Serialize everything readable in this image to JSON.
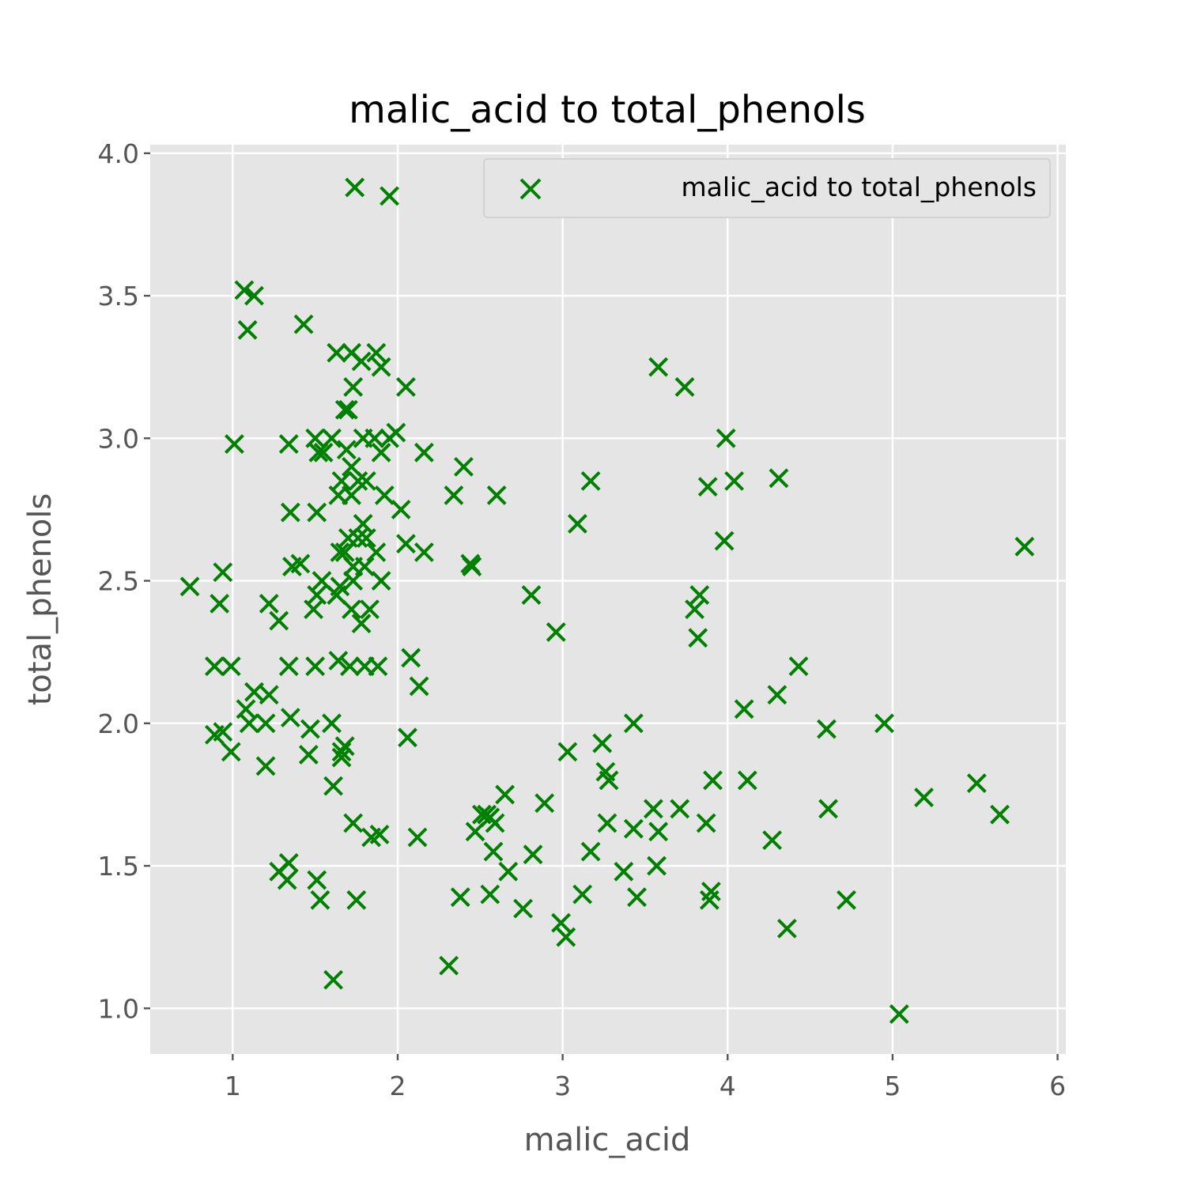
{
  "chart_data": {
    "type": "scatter",
    "title": "malic_acid to total_phenols",
    "xlabel": "malic_acid",
    "ylabel": "total_phenols",
    "xlim": [
      0.5,
      6.05
    ],
    "ylim": [
      0.84,
      4.03
    ],
    "xticks": [
      1,
      2,
      3,
      4,
      5,
      6
    ],
    "yticks": [
      1.0,
      1.5,
      2.0,
      2.5,
      3.0,
      3.5,
      4.0
    ],
    "xtick_labels": [
      "1",
      "2",
      "3",
      "4",
      "5",
      "6"
    ],
    "ytick_labels": [
      "1.0",
      "1.5",
      "2.0",
      "2.5",
      "3.0",
      "3.5",
      "4.0"
    ],
    "grid": true,
    "legend_position": "top-right",
    "marker": "x",
    "style": "ggplot",
    "colors": {
      "marker": "#008000",
      "axes_bg": "#e5e5e5",
      "grid": "#ffffff",
      "text": "#555555",
      "title": "#000000"
    },
    "series": [
      {
        "name": "malic_acid to total_phenols",
        "points": [
          [
            1.74,
            3.88
          ],
          [
            1.95,
            3.85
          ],
          [
            1.07,
            3.52
          ],
          [
            1.13,
            3.5
          ],
          [
            1.09,
            3.38
          ],
          [
            1.43,
            3.4
          ],
          [
            1.63,
            3.3
          ],
          [
            1.72,
            3.3
          ],
          [
            1.87,
            3.3
          ],
          [
            1.78,
            3.27
          ],
          [
            1.9,
            3.25
          ],
          [
            2.05,
            3.18
          ],
          [
            1.73,
            3.18
          ],
          [
            1.7,
            3.1
          ],
          [
            1.68,
            3.1
          ],
          [
            1.01,
            2.98
          ],
          [
            1.34,
            2.98
          ],
          [
            1.5,
            3.0
          ],
          [
            1.6,
            3.0
          ],
          [
            1.69,
            2.96
          ],
          [
            1.79,
            3.0
          ],
          [
            1.86,
            3.0
          ],
          [
            1.95,
            3.0
          ],
          [
            1.99,
            3.02
          ],
          [
            1.52,
            2.95
          ],
          [
            1.55,
            2.95
          ],
          [
            1.9,
            2.95
          ],
          [
            2.16,
            2.95
          ],
          [
            1.72,
            2.9
          ],
          [
            2.4,
            2.9
          ],
          [
            1.66,
            2.85
          ],
          [
            1.76,
            2.85
          ],
          [
            1.81,
            2.85
          ],
          [
            1.64,
            2.8
          ],
          [
            1.72,
            2.8
          ],
          [
            1.92,
            2.8
          ],
          [
            1.35,
            2.74
          ],
          [
            1.51,
            2.74
          ],
          [
            2.02,
            2.75
          ],
          [
            1.79,
            2.7
          ],
          [
            1.7,
            2.65
          ],
          [
            1.76,
            2.65
          ],
          [
            1.81,
            2.65
          ],
          [
            1.65,
            2.6
          ],
          [
            1.68,
            2.6
          ],
          [
            1.87,
            2.6
          ],
          [
            2.05,
            2.63
          ],
          [
            2.16,
            2.6
          ],
          [
            1.36,
            2.55
          ],
          [
            1.41,
            2.56
          ],
          [
            1.73,
            2.55
          ],
          [
            1.8,
            2.55
          ],
          [
            1.9,
            2.5
          ],
          [
            1.54,
            2.5
          ],
          [
            1.65,
            2.48
          ],
          [
            1.73,
            2.5
          ],
          [
            1.51,
            2.45
          ],
          [
            1.63,
            2.45
          ],
          [
            1.49,
            2.4
          ],
          [
            1.72,
            2.4
          ],
          [
            1.83,
            2.4
          ],
          [
            1.78,
            2.35
          ],
          [
            0.74,
            2.48
          ],
          [
            0.94,
            2.53
          ],
          [
            0.92,
            2.42
          ],
          [
            1.22,
            2.42
          ],
          [
            1.28,
            2.36
          ],
          [
            0.89,
            2.2
          ],
          [
            0.99,
            2.2
          ],
          [
            1.34,
            2.2
          ],
          [
            1.5,
            2.2
          ],
          [
            1.64,
            2.22
          ],
          [
            1.71,
            2.2
          ],
          [
            1.8,
            2.2
          ],
          [
            1.88,
            2.2
          ],
          [
            1.13,
            2.11
          ],
          [
            1.22,
            2.1
          ],
          [
            1.08,
            2.05
          ],
          [
            1.1,
            2.0
          ],
          [
            1.2,
            2.0
          ],
          [
            1.35,
            2.02
          ],
          [
            1.47,
            1.98
          ],
          [
            1.6,
            2.0
          ],
          [
            0.89,
            1.96
          ],
          [
            0.94,
            1.97
          ],
          [
            0.99,
            1.9
          ],
          [
            1.66,
            1.9
          ],
          [
            1.68,
            1.92
          ],
          [
            1.46,
            1.89
          ],
          [
            1.66,
            1.88
          ],
          [
            1.2,
            1.85
          ],
          [
            1.61,
            1.78
          ],
          [
            1.73,
            1.65
          ],
          [
            1.84,
            1.6
          ],
          [
            1.89,
            1.61
          ],
          [
            1.28,
            1.48
          ],
          [
            1.34,
            1.51
          ],
          [
            1.33,
            1.45
          ],
          [
            1.51,
            1.45
          ],
          [
            1.53,
            1.38
          ],
          [
            1.75,
            1.38
          ],
          [
            1.61,
            1.1
          ],
          [
            2.08,
            2.23
          ],
          [
            2.13,
            2.13
          ],
          [
            2.06,
            1.95
          ],
          [
            2.12,
            1.6
          ],
          [
            2.34,
            2.8
          ],
          [
            2.6,
            2.8
          ],
          [
            2.44,
            2.56
          ],
          [
            2.45,
            2.55
          ],
          [
            2.81,
            2.45
          ],
          [
            2.96,
            2.32
          ],
          [
            3.09,
            2.7
          ],
          [
            3.17,
            2.85
          ],
          [
            3.58,
            3.25
          ],
          [
            3.74,
            3.18
          ],
          [
            3.99,
            3.0
          ],
          [
            4.04,
            2.85
          ],
          [
            4.31,
            2.86
          ],
          [
            3.88,
            2.83
          ],
          [
            3.98,
            2.64
          ],
          [
            3.83,
            2.45
          ],
          [
            3.8,
            2.4
          ],
          [
            3.82,
            2.3
          ],
          [
            4.43,
            2.2
          ],
          [
            4.3,
            2.1
          ],
          [
            4.1,
            2.05
          ],
          [
            3.43,
            2.0
          ],
          [
            3.03,
            1.9
          ],
          [
            3.24,
            1.93
          ],
          [
            3.26,
            1.83
          ],
          [
            3.28,
            1.8
          ],
          [
            2.51,
            1.68
          ],
          [
            2.54,
            1.68
          ],
          [
            2.56,
            1.67
          ],
          [
            2.59,
            1.65
          ],
          [
            2.65,
            1.75
          ],
          [
            2.89,
            1.72
          ],
          [
            2.47,
            1.62
          ],
          [
            2.58,
            1.55
          ],
          [
            2.67,
            1.48
          ],
          [
            2.82,
            1.54
          ],
          [
            2.38,
            1.39
          ],
          [
            2.56,
            1.4
          ],
          [
            2.31,
            1.15
          ],
          [
            2.76,
            1.35
          ],
          [
            2.99,
            1.3
          ],
          [
            3.02,
            1.25
          ],
          [
            3.12,
            1.4
          ],
          [
            3.17,
            1.55
          ],
          [
            3.27,
            1.65
          ],
          [
            3.37,
            1.48
          ],
          [
            3.45,
            1.39
          ],
          [
            3.43,
            1.63
          ],
          [
            3.55,
            1.7
          ],
          [
            3.58,
            1.62
          ],
          [
            3.57,
            1.5
          ],
          [
            3.71,
            1.7
          ],
          [
            3.87,
            1.65
          ],
          [
            3.91,
            1.8
          ],
          [
            3.89,
            1.38
          ],
          [
            3.9,
            1.41
          ],
          [
            4.12,
            1.8
          ],
          [
            4.27,
            1.59
          ],
          [
            4.36,
            1.28
          ],
          [
            4.6,
            1.98
          ],
          [
            4.61,
            1.7
          ],
          [
            4.72,
            1.38
          ],
          [
            4.95,
            2.0
          ],
          [
            5.04,
            0.98
          ],
          [
            5.19,
            1.74
          ],
          [
            5.51,
            1.79
          ],
          [
            5.65,
            1.68
          ],
          [
            5.8,
            2.62
          ]
        ]
      }
    ]
  }
}
